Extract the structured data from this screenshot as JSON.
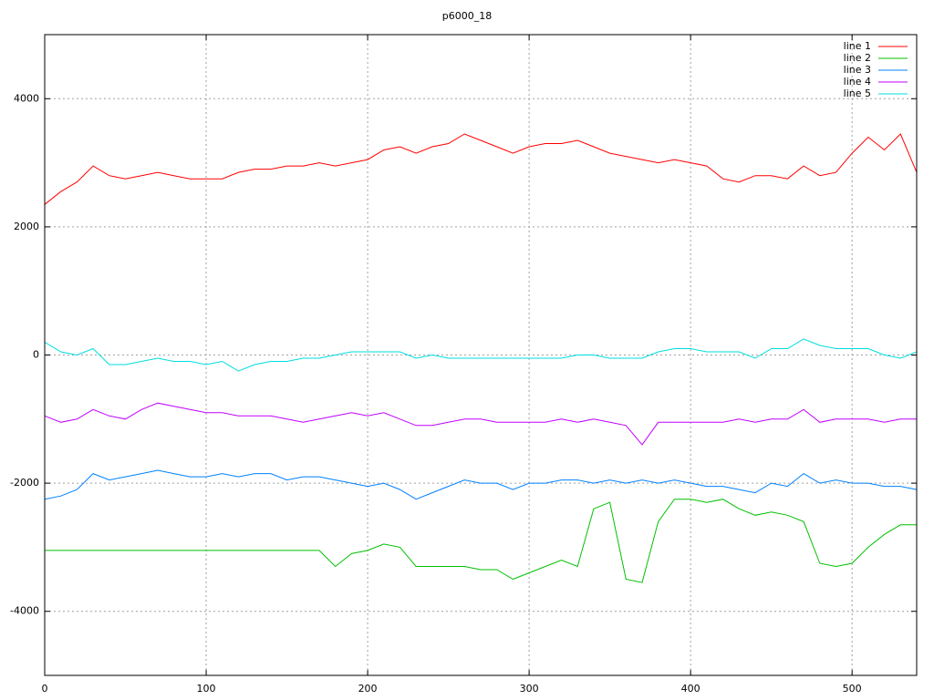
{
  "chart_data": {
    "type": "line",
    "title": "p6000_18",
    "x": [
      0,
      10,
      20,
      30,
      40,
      50,
      60,
      70,
      80,
      90,
      100,
      110,
      120,
      130,
      140,
      150,
      160,
      170,
      180,
      190,
      200,
      210,
      220,
      230,
      240,
      250,
      260,
      270,
      280,
      290,
      300,
      310,
      320,
      330,
      340,
      350,
      360,
      370,
      380,
      390,
      400,
      410,
      420,
      430,
      440,
      450,
      460,
      470,
      480,
      490,
      500,
      510,
      520,
      530,
      540
    ],
    "series": [
      {
        "name": "line 1",
        "color": "#ff0000",
        "values": [
          2350,
          2550,
          2700,
          2950,
          2800,
          2750,
          2800,
          2850,
          2800,
          2750,
          2750,
          2750,
          2850,
          2900,
          2900,
          2950,
          2950,
          3000,
          2950,
          3000,
          3050,
          3200,
          3250,
          3150,
          3250,
          3300,
          3450,
          3350,
          3250,
          3150,
          3250,
          3300,
          3300,
          3350,
          3250,
          3150,
          3100,
          3050,
          3000,
          3050,
          3000,
          2950,
          2750,
          2700,
          2800,
          2800,
          2750,
          2950,
          2800,
          2850,
          3150,
          3400,
          3200,
          3450,
          2850
        ]
      },
      {
        "name": "line 2",
        "color": "#00c000",
        "values": [
          -3050,
          -3050,
          -3050,
          -3050,
          -3050,
          -3050,
          -3050,
          -3050,
          -3050,
          -3050,
          -3050,
          -3050,
          -3050,
          -3050,
          -3050,
          -3050,
          -3050,
          -3050,
          -3300,
          -3100,
          -3050,
          -2950,
          -3000,
          -3300,
          -3300,
          -3300,
          -3300,
          -3350,
          -3350,
          -3500,
          -3400,
          -3300,
          -3200,
          -3300,
          -2400,
          -2300,
          -3500,
          -3550,
          -2600,
          -2250,
          -2250,
          -2300,
          -2250,
          -2400,
          -2500,
          -2450,
          -2500,
          -2600,
          -3250,
          -3300,
          -3250,
          -3000,
          -2800,
          -2650,
          -2650
        ]
      },
      {
        "name": "line 3",
        "color": "#0080ff",
        "values": [
          -2250,
          -2200,
          -2100,
          -1850,
          -1950,
          -1900,
          -1850,
          -1800,
          -1850,
          -1900,
          -1900,
          -1850,
          -1900,
          -1850,
          -1850,
          -1950,
          -1900,
          -1900,
          -1950,
          -2000,
          -2050,
          -2000,
          -2100,
          -2250,
          -2150,
          -2050,
          -1950,
          -2000,
          -2000,
          -2100,
          -2000,
          -2000,
          -1950,
          -1950,
          -2000,
          -1950,
          -2000,
          -1950,
          -2000,
          -1950,
          -2000,
          -2050,
          -2050,
          -2100,
          -2150,
          -2000,
          -2050,
          -1850,
          -2000,
          -1950,
          -2000,
          -2000,
          -2050,
          -2050,
          -2100
        ]
      },
      {
        "name": "line 4",
        "color": "#c000ff",
        "values": [
          -950,
          -1050,
          -1000,
          -850,
          -950,
          -1000,
          -850,
          -750,
          -800,
          -850,
          -900,
          -900,
          -950,
          -950,
          -950,
          -1000,
          -1050,
          -1000,
          -950,
          -900,
          -950,
          -900,
          -1000,
          -1100,
          -1100,
          -1050,
          -1000,
          -1000,
          -1050,
          -1050,
          -1050,
          -1050,
          -1000,
          -1050,
          -1000,
          -1050,
          -1100,
          -1400,
          -1050,
          -1050,
          -1050,
          -1050,
          -1050,
          -1000,
          -1050,
          -1000,
          -1000,
          -850,
          -1050,
          -1000,
          -1000,
          -1000,
          -1050,
          -1000,
          -1000
        ]
      },
      {
        "name": "line 5",
        "color": "#00dddd",
        "values": [
          200,
          50,
          0,
          100,
          -150,
          -150,
          -100,
          -50,
          -100,
          -100,
          -150,
          -100,
          -250,
          -150,
          -100,
          -100,
          -50,
          -50,
          0,
          50,
          50,
          50,
          50,
          -50,
          0,
          -50,
          -50,
          -50,
          -50,
          -50,
          -50,
          -50,
          -50,
          0,
          0,
          -50,
          -50,
          -50,
          50,
          100,
          100,
          50,
          50,
          50,
          -50,
          100,
          100,
          250,
          150,
          100,
          100,
          100,
          0,
          -50,
          50
        ]
      }
    ],
    "xlim": [
      0,
      540
    ],
    "xticks": [
      0,
      100,
      200,
      300,
      400,
      500
    ],
    "ylim": [
      -5000,
      5000
    ],
    "yticks": [
      -4000,
      -2000,
      0,
      2000,
      4000
    ],
    "grid": true,
    "legend": "top-right"
  }
}
